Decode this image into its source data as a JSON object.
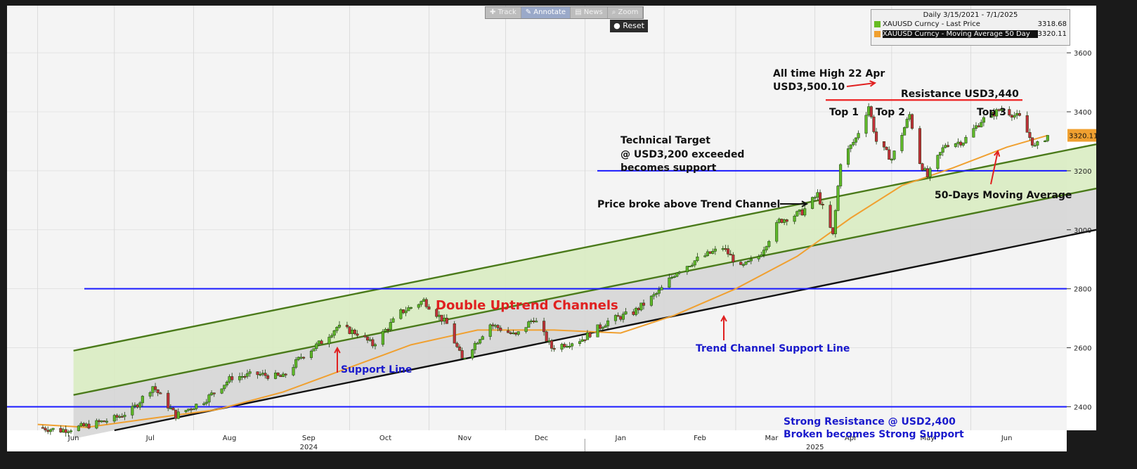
{
  "toolbar": {
    "track": "Track",
    "annotate": "Annotate",
    "news": "News",
    "zoom": "Zoom",
    "reset": "Reset"
  },
  "legend": {
    "title": "Daily 3/15/2021 - 7/1/2025",
    "items": [
      {
        "label": "XAUUSD Curncy - Last Price",
        "value": "3318.68",
        "color": "#66bb22"
      },
      {
        "label": "XAUUSD Curncy - Moving Average 50 Day",
        "value": "3320.11",
        "color": "#f0a030"
      }
    ]
  },
  "chart_data": {
    "type": "candlestick",
    "instrument": "XAUUSD Curncy",
    "ylim": [
      2320,
      3760
    ],
    "yticks": [
      2400,
      2600,
      2800,
      3000,
      3200,
      3400,
      3600
    ],
    "x_month_labels": [
      "Jun",
      "Jul",
      "Aug",
      "Sep",
      "Oct",
      "Nov",
      "Dec",
      "Jan",
      "Feb",
      "Mar",
      "Apr",
      "May",
      "Jun"
    ],
    "x_year_labels": [
      "2024",
      "2025"
    ],
    "last_price_label": "3320.11",
    "price_path": [
      [
        "2024-06-01",
        2330
      ],
      [
        "2024-06-10",
        2320
      ],
      [
        "2024-06-20",
        2335
      ],
      [
        "2024-07-01",
        2360
      ],
      [
        "2024-07-08",
        2390
      ],
      [
        "2024-07-16",
        2470
      ],
      [
        "2024-07-25",
        2370
      ],
      [
        "2024-08-05",
        2420
      ],
      [
        "2024-08-16",
        2500
      ],
      [
        "2024-08-26",
        2510
      ],
      [
        "2024-09-05",
        2500
      ],
      [
        "2024-09-12",
        2570
      ],
      [
        "2024-09-20",
        2620
      ],
      [
        "2024-09-26",
        2670
      ],
      [
        "2024-10-04",
        2650
      ],
      [
        "2024-10-10",
        2610
      ],
      [
        "2024-10-21",
        2720
      ],
      [
        "2024-10-30",
        2760
      ],
      [
        "2024-11-08",
        2680
      ],
      [
        "2024-11-14",
        2560
      ],
      [
        "2024-11-25",
        2680
      ],
      [
        "2024-12-05",
        2640
      ],
      [
        "2024-12-12",
        2700
      ],
      [
        "2024-12-19",
        2600
      ],
      [
        "2024-12-31",
        2630
      ],
      [
        "2025-01-10",
        2690
      ],
      [
        "2025-01-20",
        2720
      ],
      [
        "2025-01-30",
        2790
      ],
      [
        "2025-02-06",
        2860
      ],
      [
        "2025-02-14",
        2900
      ],
      [
        "2025-02-24",
        2940
      ],
      [
        "2025-03-03",
        2870
      ],
      [
        "2025-03-10",
        2910
      ],
      [
        "2025-03-18",
        3030
      ],
      [
        "2025-03-27",
        3060
      ],
      [
        "2025-04-02",
        3120
      ],
      [
        "2025-04-08",
        2980
      ],
      [
        "2025-04-11",
        3230
      ],
      [
        "2025-04-17",
        3310
      ],
      [
        "2025-04-22",
        3420
      ],
      [
        "2025-04-25",
        3300
      ],
      [
        "2025-05-01",
        3240
      ],
      [
        "2025-05-08",
        3390
      ],
      [
        "2025-05-12",
        3230
      ],
      [
        "2025-05-15",
        3180
      ],
      [
        "2025-05-22",
        3290
      ],
      [
        "2025-05-29",
        3300
      ],
      [
        "2025-06-05",
        3370
      ],
      [
        "2025-06-13",
        3410
      ],
      [
        "2025-06-20",
        3380
      ],
      [
        "2025-06-26",
        3280
      ],
      [
        "2025-07-01",
        3320
      ]
    ],
    "ma50_path": [
      [
        "2024-06-01",
        2340
      ],
      [
        "2024-06-20",
        2330
      ],
      [
        "2024-07-15",
        2360
      ],
      [
        "2024-08-10",
        2390
      ],
      [
        "2024-09-05",
        2450
      ],
      [
        "2024-09-30",
        2530
      ],
      [
        "2024-10-25",
        2610
      ],
      [
        "2024-11-20",
        2660
      ],
      [
        "2024-12-20",
        2660
      ],
      [
        "2025-01-15",
        2650
      ],
      [
        "2025-02-05",
        2710
      ],
      [
        "2025-03-01",
        2800
      ],
      [
        "2025-03-25",
        2910
      ],
      [
        "2025-04-15",
        3040
      ],
      [
        "2025-05-05",
        3150
      ],
      [
        "2025-05-25",
        3210
      ],
      [
        "2025-06-15",
        3280
      ],
      [
        "2025-07-01",
        3320
      ]
    ],
    "horizontal_lines": [
      {
        "value": 2400,
        "color": "#1a1aff"
      },
      {
        "value": 2800,
        "color": "#1a1aff"
      },
      {
        "value": 3200,
        "color": "#1a1aff"
      }
    ],
    "resistance_line": {
      "value": 3440,
      "color": "#ee2222"
    },
    "channels": [
      {
        "name": "Support Line",
        "color": "#4a7a1a"
      },
      {
        "name": "Trend Channel Support Line",
        "color": "#111111"
      }
    ],
    "annotations": {
      "double_uptrend": "Double Uptrend Channels",
      "support_line": "Support Line",
      "trend_channel_support": "Trend Channel Support Line",
      "strong_resistance_1": "Strong Resistance @ USD2,400",
      "strong_resistance_2": "Broken becomes Strong Support",
      "price_broke": "Price broke above Trend Channel",
      "technical_target_1": "Technical Target",
      "technical_target_2": "@ USD3,200 exceeded",
      "technical_target_3": "becomes support",
      "ath_1": "All time High 22 Apr",
      "ath_2": "USD3,500.10",
      "resistance": "Resistance USD3,440",
      "top1": "Top 1",
      "top2": "Top 2",
      "top3": "Top 3",
      "ma50": "50-Days Moving Average"
    }
  }
}
